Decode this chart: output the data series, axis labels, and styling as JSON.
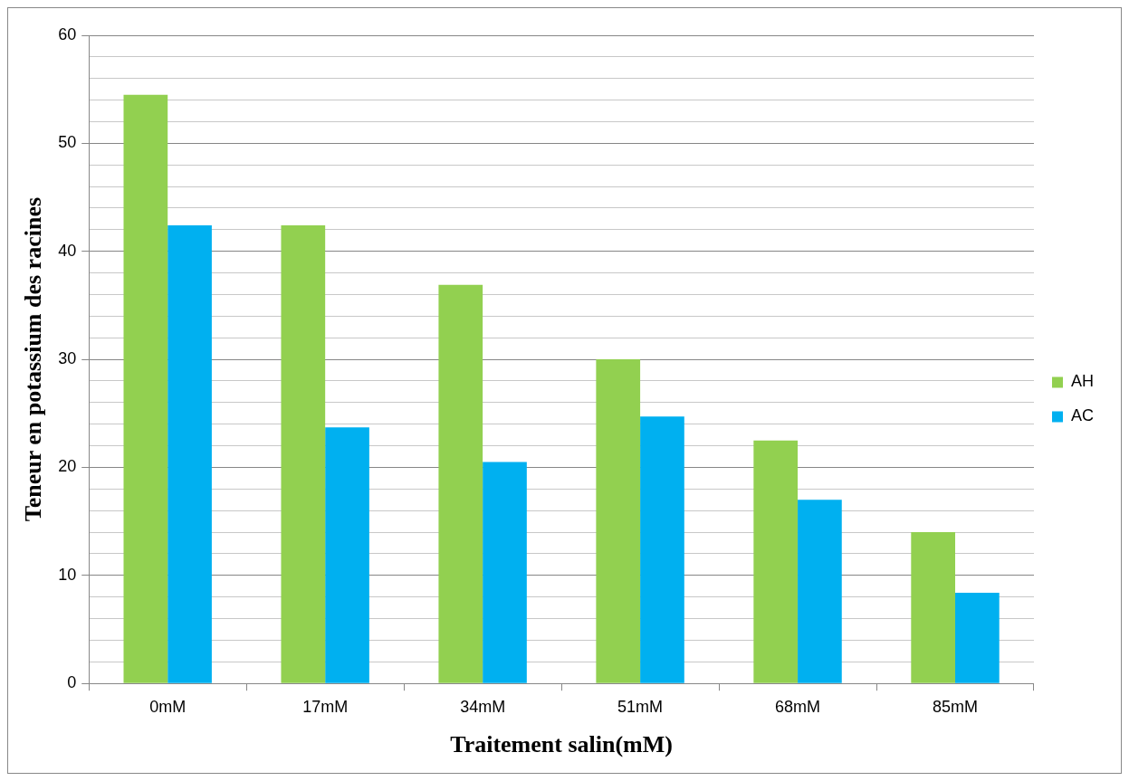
{
  "chart_data": {
    "type": "bar",
    "xlabel": "Traitement salin(mM)",
    "ylabel": "Teneur en potassium des racines",
    "categories": [
      "0mM",
      "17mM",
      "34mM",
      "51mM",
      "68mM",
      "85mM"
    ],
    "series": [
      {
        "name": "AH",
        "color": "#92d050",
        "values": [
          54.5,
          42.4,
          36.9,
          30.0,
          22.5,
          14.0
        ]
      },
      {
        "name": "AC",
        "color": "#00b0f0",
        "values": [
          42.4,
          23.7,
          20.5,
          24.7,
          17.0,
          8.4
        ]
      }
    ],
    "ylim": [
      0,
      60
    ],
    "yticks": [
      0,
      {
        "value": 2,
        "label": null
      },
      {
        "value": 4,
        "label": null
      },
      {
        "value": 6,
        "label": null
      },
      {
        "value": 8,
        "label": null
      },
      10,
      {
        "value": 12,
        "label": null
      },
      {
        "value": 14,
        "label": null
      },
      {
        "value": 16,
        "label": null
      },
      {
        "value": 18,
        "label": null
      },
      20,
      {
        "value": 22,
        "label": null
      },
      {
        "value": 24,
        "label": null
      },
      {
        "value": 26,
        "label": null
      },
      {
        "value": 28,
        "label": null
      },
      30,
      {
        "value": 32,
        "label": null
      },
      {
        "value": 34,
        "label": null
      },
      {
        "value": 36,
        "label": null
      },
      {
        "value": 38,
        "label": null
      },
      40,
      {
        "value": 42,
        "label": null
      },
      {
        "value": 44,
        "label": null
      },
      {
        "value": 46,
        "label": null
      },
      {
        "value": 48,
        "label": null
      },
      50,
      {
        "value": 52,
        "label": null
      },
      {
        "value": 54,
        "label": null
      },
      {
        "value": 56,
        "label": null
      },
      {
        "value": 58,
        "label": null
      },
      60
    ],
    "grid": "y",
    "legend": "right"
  }
}
